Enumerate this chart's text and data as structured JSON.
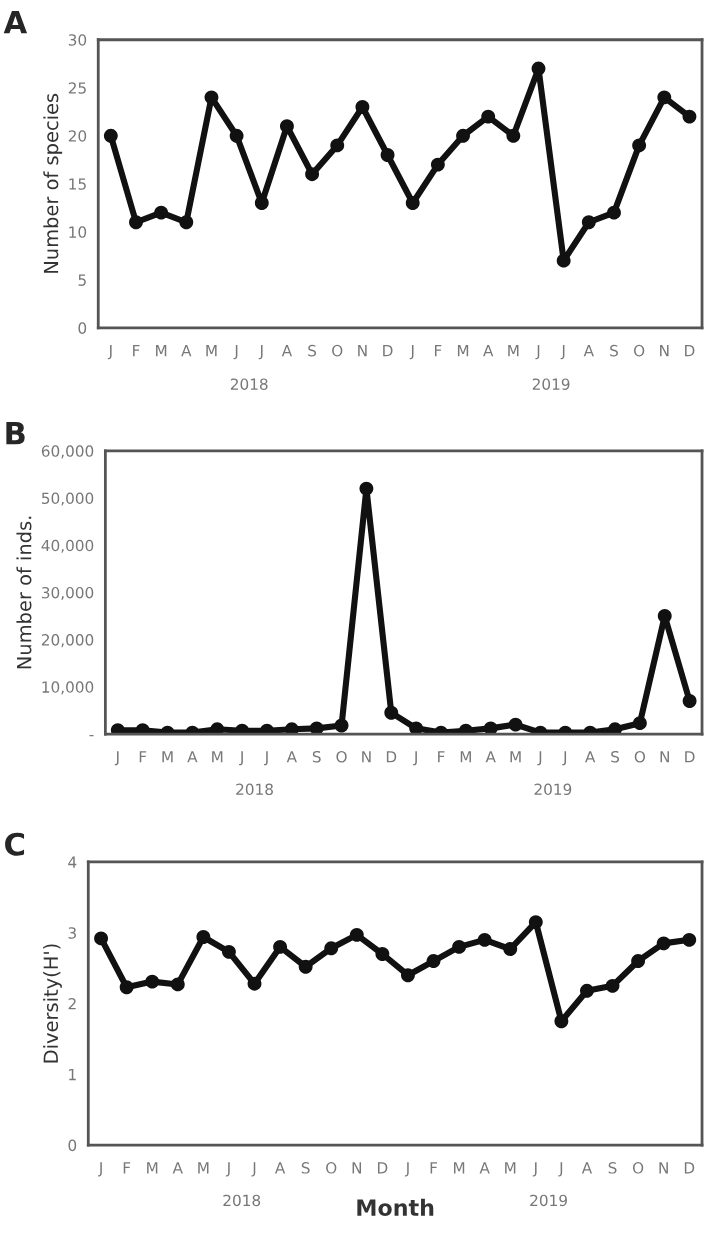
{
  "chart_data": [
    {
      "type": "line",
      "title": "A",
      "ylabel": "Number of species",
      "categories": [
        "J",
        "F",
        "M",
        "A",
        "M",
        "J",
        "J",
        "A",
        "S",
        "O",
        "N",
        "D",
        "J",
        "F",
        "M",
        "A",
        "M",
        "J",
        "J",
        "A",
        "S",
        "O",
        "N",
        "D"
      ],
      "series": [
        {
          "color": "#111111",
          "values": [
            20,
            11,
            12,
            11,
            24,
            20,
            13,
            21,
            16,
            19,
            23,
            18,
            13,
            17,
            20,
            22,
            20,
            27,
            7,
            11,
            12,
            19,
            24,
            22
          ]
        }
      ],
      "ylim": [
        0,
        30
      ],
      "yticks": [
        0,
        5,
        10,
        15,
        20,
        25,
        30
      ],
      "grid": false,
      "marker": "circle",
      "line_style": "solid",
      "annotations": [
        "2018",
        "2019"
      ]
    },
    {
      "type": "line",
      "title": "B",
      "ylabel": "Number of inds.",
      "categories": [
        "J",
        "F",
        "M",
        "A",
        "M",
        "J",
        "J",
        "A",
        "S",
        "O",
        "N",
        "D",
        "J",
        "F",
        "M",
        "A",
        "M",
        "J",
        "J",
        "A",
        "S",
        "O",
        "N",
        "D"
      ],
      "series": [
        {
          "color": "#111111",
          "values": [
            800,
            800,
            300,
            300,
            1000,
            700,
            700,
            1000,
            1200,
            1800,
            52000,
            4500,
            1200,
            300,
            700,
            1200,
            2000,
            300,
            300,
            300,
            1000,
            2300,
            25000,
            7000
          ]
        }
      ],
      "ylim": [
        0,
        60000
      ],
      "yticks": [
        {
          "value": 0,
          "label": "-"
        },
        {
          "value": 10000,
          "label": "10,000"
        },
        {
          "value": 20000,
          "label": "20,000"
        },
        {
          "value": 30000,
          "label": "30,000"
        },
        {
          "value": 40000,
          "label": "40,000"
        },
        {
          "value": 50000,
          "label": "50,000"
        },
        {
          "value": 60000,
          "label": "60,000"
        }
      ],
      "grid": false,
      "marker": "circle",
      "line_style": "solid",
      "annotations": [
        "2018",
        "2019"
      ]
    },
    {
      "type": "line",
      "title": "C",
      "ylabel": "Diversity(H')",
      "xlabel": "Month",
      "categories": [
        "J",
        "F",
        "M",
        "A",
        "M",
        "J",
        "J",
        "A",
        "S",
        "O",
        "N",
        "D",
        "J",
        "F",
        "M",
        "A",
        "M",
        "J",
        "J",
        "A",
        "S",
        "O",
        "N",
        "D"
      ],
      "series": [
        {
          "color": "#111111",
          "values": [
            2.92,
            2.23,
            2.31,
            2.27,
            2.94,
            2.73,
            2.28,
            2.8,
            2.52,
            2.78,
            2.97,
            2.7,
            2.4,
            2.6,
            2.8,
            2.9,
            2.77,
            3.15,
            1.75,
            2.18,
            2.25,
            2.6,
            2.85,
            2.9
          ]
        }
      ],
      "ylim": [
        0,
        4
      ],
      "yticks": [
        0,
        1,
        2,
        3,
        4
      ],
      "grid": false,
      "marker": "circle",
      "line_style": "solid",
      "annotations": [
        "2018",
        "2019"
      ]
    }
  ]
}
